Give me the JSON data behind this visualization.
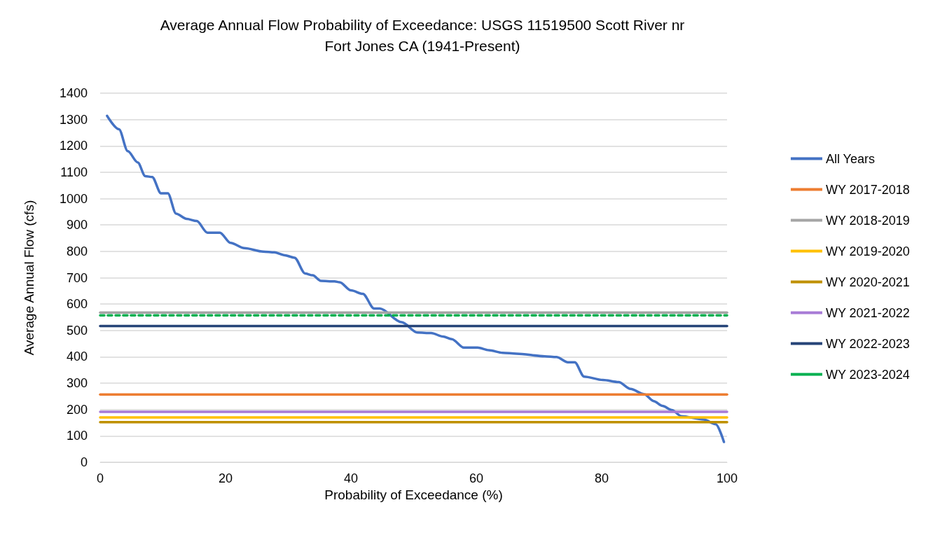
{
  "chart_data": {
    "type": "line",
    "title": "Average Annual Flow Probability of Exceedance: USGS 11519500 Scott River nr\nFort Jones CA (1941-Present)",
    "xlabel": "Probability of Exceedance (%)",
    "ylabel": "Average Annual Flow (cfs)",
    "xlim": [
      0,
      100
    ],
    "ylim": [
      0,
      1400
    ],
    "xticks": [
      0,
      20,
      40,
      60,
      80,
      100
    ],
    "yticks": [
      0,
      100,
      200,
      300,
      400,
      500,
      600,
      700,
      800,
      900,
      1000,
      1100,
      1200,
      1300,
      1400
    ],
    "grid": "y",
    "legend": "right",
    "marker": "none",
    "line_style": "solid",
    "series": [
      {
        "name": "All Years",
        "color": "#4472c4",
        "x": [
          1.1,
          3,
          4.4,
          6,
          7.2,
          8.3,
          9.7,
          10.8,
          12.1,
          13.8,
          15.4,
          17.1,
          19.1,
          20.8,
          23,
          26,
          27.8,
          29.3,
          31,
          32.7,
          33.9,
          35.2,
          37.4,
          38.2,
          40,
          41.9,
          43.7,
          44.6,
          48.1,
          50.6,
          52.8,
          54.7,
          56.1,
          58,
          60.2,
          62,
          64.2,
          66.4,
          70.9,
          72.8,
          74.6,
          75.7,
          77.2,
          80.2,
          82.7,
          84.6,
          86.8,
          88.3,
          89.7,
          91.2,
          92.7,
          96.3,
          98.2,
          99.5
        ],
        "values": [
          1314,
          1263,
          1180,
          1137,
          1085,
          1082,
          1020,
          1020,
          943,
          923,
          915,
          871,
          871,
          832,
          812,
          799,
          796,
          786,
          776,
          716,
          709,
          688,
          686,
          683,
          652,
          639,
          583,
          583,
          531,
          492,
          490,
          477,
          467,
          435,
          435,
          425,
          415,
          412,
          402,
          399,
          379,
          379,
          325,
          312,
          304,
          278,
          258,
          232,
          214,
          198,
          175,
          162,
          144,
          77
        ]
      },
      {
        "name": "WY 2017-2018",
        "color": "#ed7d31",
        "x": [
          0,
          100
        ],
        "values": [
          257,
          257
        ]
      },
      {
        "name": "WY 2018-2019",
        "color": "#a5a5a5",
        "x": [
          0,
          100
        ],
        "values": [
          568,
          568
        ]
      },
      {
        "name": "WY 2019-2020",
        "color": "#ffc000",
        "x": [
          0,
          100
        ],
        "values": [
          170,
          170
        ]
      },
      {
        "name": "WY 2020-2021",
        "color": "#bf9000",
        "x": [
          0,
          100
        ],
        "values": [
          152,
          152
        ]
      },
      {
        "name": "WY 2021-2022",
        "color": "#a77bd6",
        "x": [
          0,
          100
        ],
        "values": [
          191,
          191
        ]
      },
      {
        "name": "WY 2022-2023",
        "color": "#264478",
        "x": [
          0,
          100
        ],
        "values": [
          517,
          517
        ]
      },
      {
        "name": "WY 2023-2024",
        "color": "#00b050",
        "x": [
          0,
          100
        ],
        "values": [
          557,
          557
        ],
        "line_style": "dashed"
      }
    ]
  }
}
